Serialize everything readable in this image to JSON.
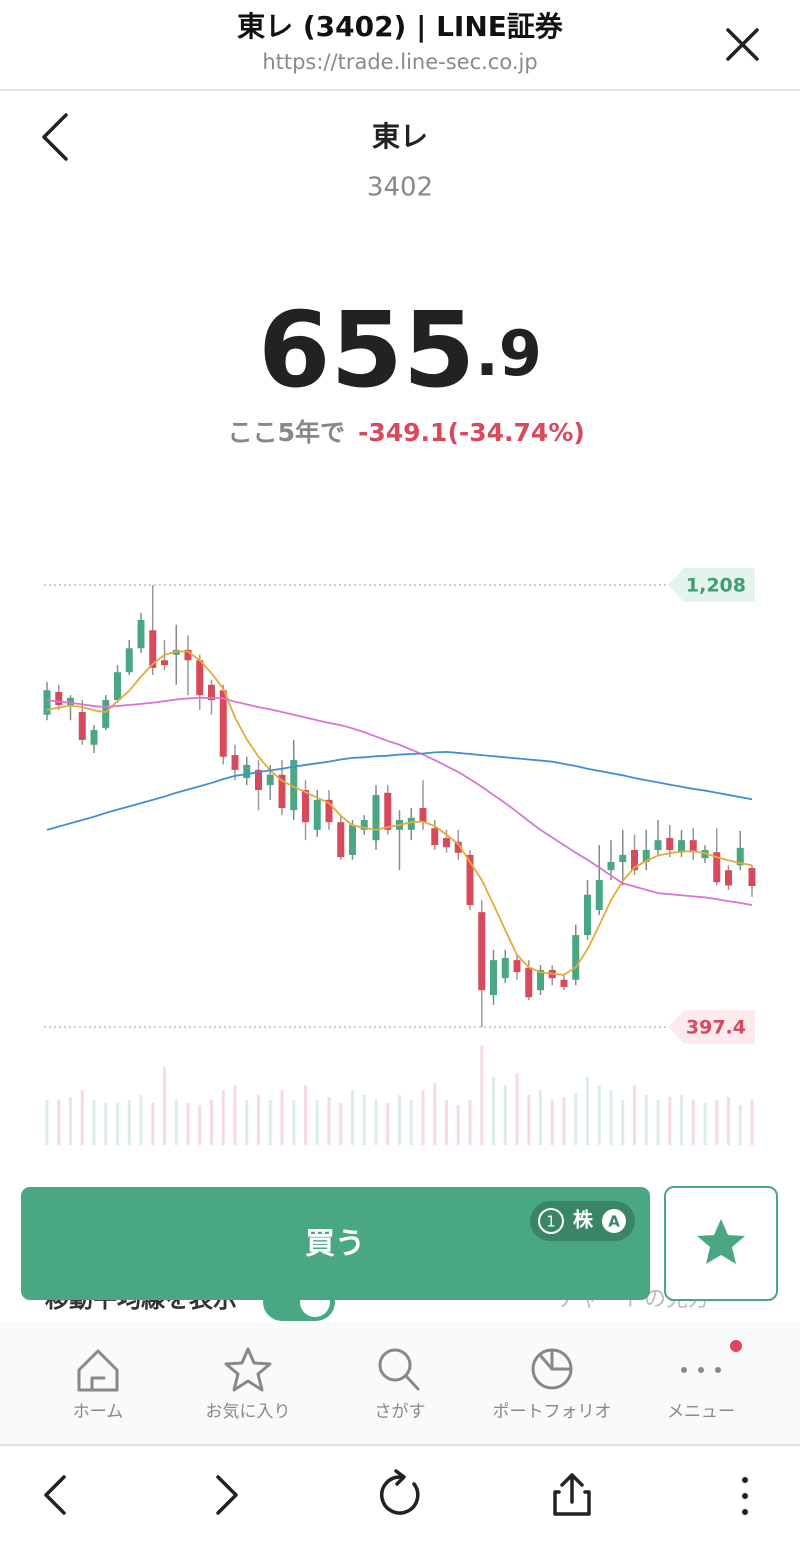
{
  "browser": {
    "title": "東レ (3402) | LINE証券",
    "url": "https://trade.line-sec.co.jp"
  },
  "stock": {
    "name": "東レ",
    "code": "3402",
    "price": {
      "integer": "655",
      "decimal": ".9"
    },
    "change_label": "ここ5年で",
    "change": "-349.1(-34.74%)"
  },
  "chart_data": {
    "type": "candlestick",
    "up_color": "#4aa783",
    "down_color": "#d8495c",
    "open": [
      970,
      1012,
      988,
      975,
      915,
      946,
      997,
      1048,
      1092,
      1125,
      1070,
      1080,
      1089,
      1070,
      1025,
      1015,
      896,
      854,
      869,
      841,
      860,
      795,
      832,
      759,
      814,
      773,
      713,
      759,
      740,
      827,
      759,
      759,
      799,
      762,
      744,
      737,
      713,
      608,
      456,
      487,
      520,
      506,
      465,
      502,
      484,
      484,
      566,
      612,
      685,
      700,
      722,
      700,
      722,
      744,
      718,
      740,
      707,
      718,
      685,
      694,
      689
    ],
    "high": [
      1030,
      1025,
      1006,
      997,
      951,
      1006,
      1061,
      1107,
      1157,
      1208,
      1107,
      1135,
      1116,
      1080,
      1034,
      1025,
      915,
      893,
      887,
      878,
      887,
      924,
      850,
      832,
      832,
      786,
      777,
      786,
      841,
      841,
      795,
      799,
      850,
      777,
      759,
      759,
      722,
      630,
      539,
      539,
      529,
      520,
      511,
      511,
      493,
      585,
      667,
      731,
      740,
      759,
      750,
      759,
      777,
      768,
      759,
      762,
      731,
      762,
      694,
      757,
      694
    ],
    "low": [
      960,
      979,
      960,
      915,
      900,
      942,
      992,
      1043,
      1083,
      1043,
      1052,
      1025,
      1006,
      979,
      970,
      879,
      850,
      841,
      795,
      814,
      786,
      777,
      740,
      746,
      759,
      704,
      704,
      750,
      722,
      750,
      685,
      740,
      759,
      722,
      717,
      704,
      612,
      397.4,
      438,
      478,
      484,
      447,
      456,
      474,
      465,
      474,
      557,
      603,
      667,
      657,
      676,
      685,
      713,
      709,
      709,
      704,
      698,
      657,
      649,
      685,
      636
    ],
    "close": [
      1015,
      988,
      1001,
      924,
      942,
      997,
      1048,
      1092,
      1144,
      1056,
      1061,
      1089,
      1070,
      1006,
      997,
      893,
      869,
      878,
      832,
      860,
      799,
      887,
      773,
      814,
      773,
      709,
      768,
      777,
      823,
      759,
      777,
      781,
      773,
      731,
      727,
      717,
      621,
      465,
      520,
      524,
      498,
      452,
      502,
      487,
      471,
      566,
      640,
      667,
      700,
      713,
      685,
      722,
      740,
      722,
      740,
      718,
      722,
      663,
      657,
      726,
      655.9
    ],
    "moving_averages": [
      {
        "color": "#e8a93a",
        "values": [
          979,
          983,
          987,
          984,
          978,
          975,
          995,
          1014,
          1040,
          1063,
          1080,
          1086,
          1086,
          1070,
          1046,
          1018,
          965,
          925,
          893,
          868,
          849,
          838,
          828,
          818,
          808,
          785,
          767,
          763,
          759,
          764,
          768,
          773,
          774,
          766,
          750,
          733,
          700,
          667,
          622,
          575,
          530,
          507,
          498,
          495,
          493,
          507,
          540,
          584,
          630,
          665,
          690,
          702,
          712,
          716,
          719,
          720,
          716,
          709,
          703,
          698,
          694
        ]
      },
      {
        "color": "#da74d6",
        "values": [
          997,
          994,
          992,
          989,
          986,
          984,
          986,
          988,
          990,
          992,
          995,
          998,
          1000,
          1001,
          1001,
          1000,
          994,
          989,
          984,
          980,
          975,
          970,
          965,
          960,
          955,
          951,
          945,
          938,
          930,
          922,
          915,
          906,
          897,
          887,
          876,
          865,
          852,
          838,
          823,
          808,
          792,
          775,
          759,
          745,
          731,
          717,
          704,
          690,
          675,
          661,
          655,
          649,
          643,
          641,
          639,
          637,
          635,
          632,
          628,
          625,
          621
        ]
      },
      {
        "color": "#3d8fd6",
        "values": [
          759,
          765,
          771,
          777,
          783,
          790,
          796,
          802,
          808,
          814,
          820,
          827,
          833,
          839,
          845,
          852,
          858,
          861,
          865,
          868,
          871,
          875,
          878,
          881,
          884,
          888,
          891,
          892,
          894,
          895,
          897,
          898,
          899,
          901,
          902,
          900,
          898,
          896,
          894,
          892,
          890,
          888,
          886,
          884,
          880,
          876,
          871,
          867,
          863,
          859,
          854,
          850,
          846,
          842,
          838,
          834,
          831,
          827,
          823,
          819,
          815
        ]
      }
    ],
    "volume": {
      "ylim": [
        0,
        100
      ],
      "values": [
        45,
        45,
        48,
        55,
        45,
        42,
        42,
        45,
        50,
        42,
        78,
        45,
        42,
        40,
        45,
        55,
        60,
        45,
        50,
        45,
        55,
        45,
        60,
        45,
        48,
        42,
        55,
        50,
        45,
        42,
        50,
        45,
        55,
        62,
        45,
        40,
        45,
        100,
        68,
        60,
        72,
        50,
        55,
        45,
        48,
        52,
        68,
        60,
        55,
        45,
        60,
        50,
        45,
        48,
        50,
        45,
        42,
        45,
        48,
        40,
        45
      ]
    },
    "ylim": [
      380,
      1230
    ],
    "high_label": {
      "value": 1208,
      "label": "1,208"
    },
    "low_label": {
      "value": 397.4,
      "label": "397.4"
    }
  },
  "buy": {
    "label": "買う",
    "quantity": "1",
    "unit": "株",
    "badge": "A"
  },
  "options": {
    "moving_average_toggle": "移動平均線を表示",
    "chart_help": "チャートの見方"
  },
  "nav": [
    "ホーム",
    "お気に入り",
    "さがす",
    "ポートフォリオ",
    "メニュー"
  ]
}
